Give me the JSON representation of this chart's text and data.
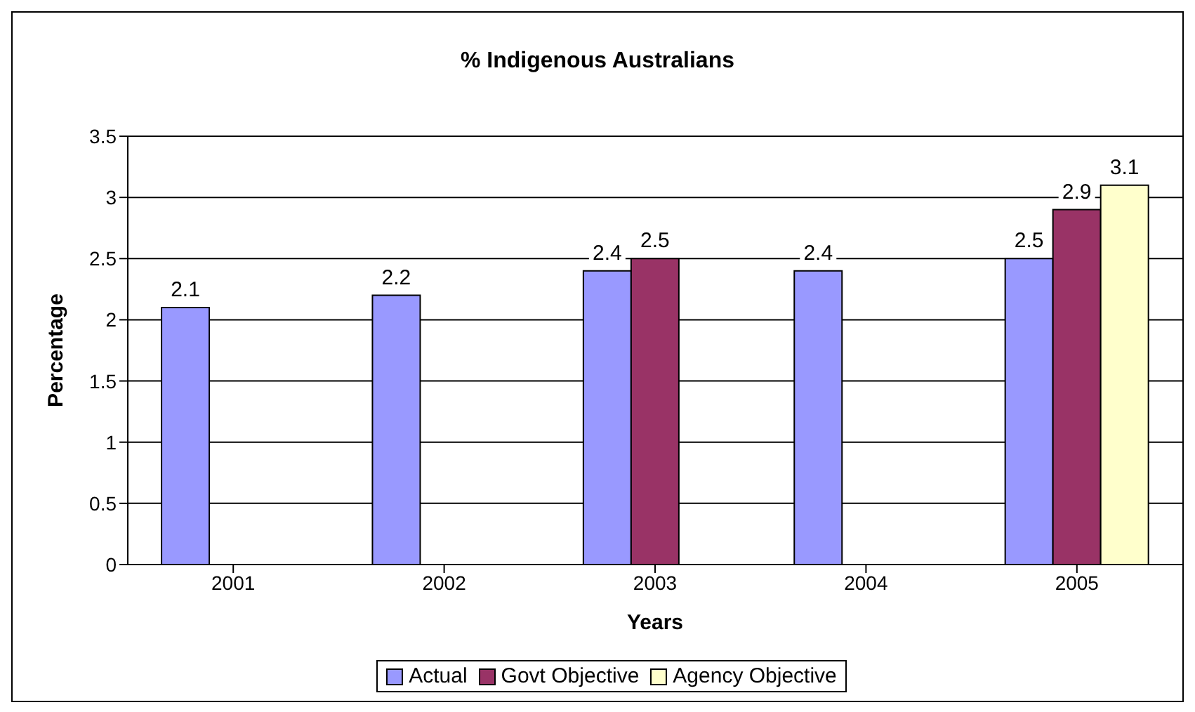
{
  "chart_data": {
    "type": "bar",
    "title": "% Indigenous Australians",
    "xlabel": "Years",
    "ylabel": "Percentage",
    "categories": [
      "2001",
      "2002",
      "2003",
      "2004",
      "2005"
    ],
    "series": [
      {
        "name": "Actual",
        "color": "#9999ff",
        "values": [
          2.1,
          2.2,
          2.4,
          2.4,
          2.5
        ]
      },
      {
        "name": "Govt Objective",
        "color": "#993366",
        "values": [
          null,
          null,
          2.5,
          null,
          2.9
        ]
      },
      {
        "name": "Agency Objective",
        "color": "#ffffcc",
        "values": [
          null,
          null,
          null,
          null,
          3.1
        ]
      }
    ],
    "ylim": [
      0,
      3.5
    ],
    "yticks": [
      0,
      0.5,
      1,
      1.5,
      2,
      2.5,
      3,
      3.5
    ],
    "grid": "y",
    "legend": "bottom",
    "data_labels": true
  }
}
